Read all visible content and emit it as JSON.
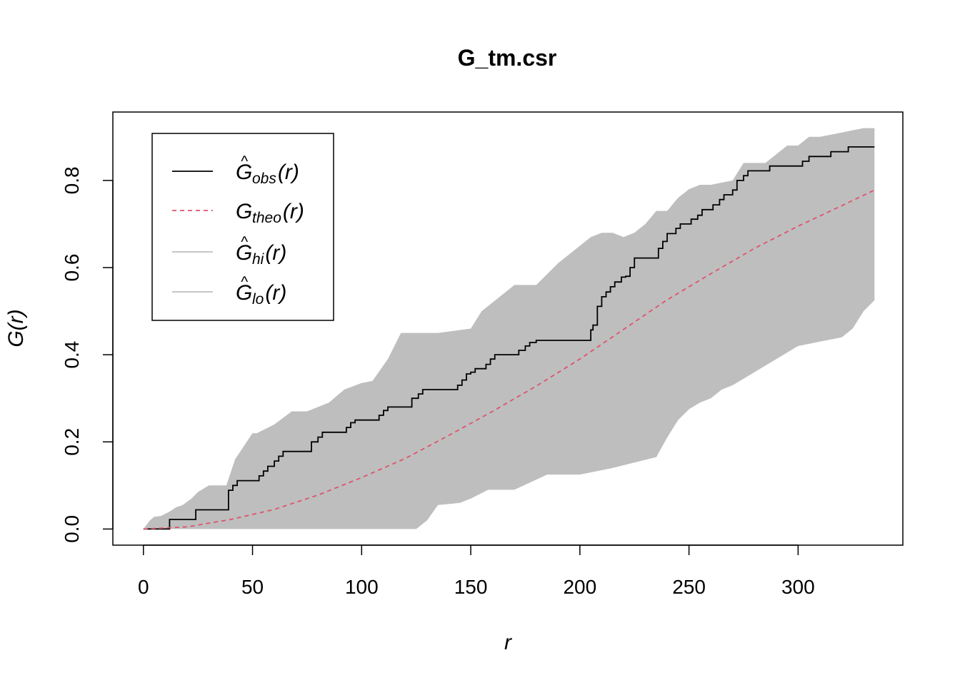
{
  "chart_data": {
    "type": "line",
    "title": "G_tm.csr",
    "xlabel": "r",
    "ylabel": "G(r)",
    "xlim": [
      -14,
      348
    ],
    "ylim": [
      -0.037,
      0.957
    ],
    "xticks": [
      0,
      50,
      100,
      150,
      200,
      250,
      300
    ],
    "xtick_labels": [
      "0",
      "50",
      "100",
      "150",
      "200",
      "250",
      "300"
    ],
    "yticks": [
      0.0,
      0.2,
      0.4,
      0.6,
      0.8
    ],
    "ytick_labels": [
      "0.0",
      "0.2",
      "0.4",
      "0.6",
      "0.8"
    ],
    "grid": false,
    "legend_position": "top-left",
    "legend": [
      {
        "base": "G",
        "hat": true,
        "sub": "obs",
        "suffix": "(r)",
        "color": "#000000",
        "dash": "solid"
      },
      {
        "base": "G",
        "hat": false,
        "sub": "theo",
        "suffix": "(r)",
        "color": "#DF536B",
        "dash": "dashed"
      },
      {
        "base": "G",
        "hat": true,
        "sub": "hi",
        "suffix": "(r)",
        "color": "#BEBEBE",
        "dash": "solid"
      },
      {
        "base": "G",
        "hat": true,
        "sub": "lo",
        "suffix": "(r)",
        "color": "#BEBEBE",
        "dash": "solid"
      }
    ],
    "series": [
      {
        "name": "obs",
        "type": "step",
        "color": "#000000",
        "x": [
          0,
          11,
          12,
          22,
          24,
          38,
          39,
          41,
          43,
          51,
          53,
          55,
          57,
          60,
          62,
          64,
          66,
          75,
          77,
          80,
          82,
          91,
          93,
          95,
          97,
          106,
          108,
          110,
          112,
          121,
          123,
          126,
          128,
          142,
          144,
          146,
          148,
          150,
          152,
          157,
          159,
          161,
          163,
          170,
          172,
          175,
          177,
          180,
          182,
          203,
          205,
          206,
          208,
          210,
          212,
          214,
          216,
          219,
          221,
          223,
          225,
          234,
          236,
          238,
          240,
          244,
          246,
          249,
          251,
          254,
          256,
          259,
          261,
          264,
          266,
          270,
          272,
          275,
          277,
          280,
          282,
          285,
          287,
          300,
          302,
          305,
          307,
          315,
          317,
          323,
          325,
          335
        ],
        "y": [
          0,
          0,
          0.022,
          0.022,
          0.044,
          0.044,
          0.089,
          0.1,
          0.111,
          0.111,
          0.122,
          0.133,
          0.144,
          0.156,
          0.167,
          0.178,
          0.178,
          0.178,
          0.2,
          0.211,
          0.222,
          0.222,
          0.233,
          0.244,
          0.25,
          0.25,
          0.261,
          0.272,
          0.28,
          0.28,
          0.3,
          0.31,
          0.32,
          0.32,
          0.33,
          0.342,
          0.356,
          0.36,
          0.368,
          0.378,
          0.39,
          0.4,
          0.4,
          0.4,
          0.41,
          0.42,
          0.428,
          0.433,
          0.433,
          0.433,
          0.457,
          0.468,
          0.511,
          0.533,
          0.544,
          0.556,
          0.567,
          0.578,
          0.58,
          0.6,
          0.622,
          0.622,
          0.644,
          0.66,
          0.678,
          0.69,
          0.7,
          0.7,
          0.711,
          0.72,
          0.733,
          0.733,
          0.744,
          0.756,
          0.767,
          0.778,
          0.8,
          0.811,
          0.822,
          0.822,
          0.822,
          0.822,
          0.833,
          0.833,
          0.844,
          0.855,
          0.855,
          0.866,
          0.866,
          0.877,
          0.877,
          0.877
        ]
      },
      {
        "name": "theo",
        "type": "line",
        "color": "#DF536B",
        "x": [
          0,
          20,
          40,
          60,
          80,
          100,
          120,
          140,
          160,
          180,
          200,
          220,
          240,
          260,
          280,
          300,
          320,
          335
        ],
        "y": [
          0,
          0.005,
          0.022,
          0.045,
          0.078,
          0.118,
          0.162,
          0.215,
          0.27,
          0.328,
          0.39,
          0.458,
          0.526,
          0.586,
          0.644,
          0.695,
          0.742,
          0.778
        ]
      }
    ],
    "envelope": {
      "name": "hi/lo",
      "color": "#BEBEBE",
      "hi": {
        "x": [
          0,
          3,
          5,
          8,
          12,
          15,
          18,
          22,
          25,
          30,
          38,
          42,
          50,
          52,
          60,
          68,
          75,
          85,
          92,
          100,
          105,
          112,
          118,
          125,
          135,
          150,
          155,
          160,
          170,
          180,
          190,
          195,
          200,
          205,
          210,
          215,
          220,
          225,
          230,
          235,
          240,
          245,
          250,
          255,
          260,
          270,
          275,
          280,
          285,
          290,
          295,
          300,
          305,
          310,
          315,
          320,
          325,
          330,
          335
        ],
        "y": [
          0,
          0.02,
          0.028,
          0.03,
          0.04,
          0.05,
          0.055,
          0.07,
          0.085,
          0.1,
          0.1,
          0.16,
          0.22,
          0.22,
          0.24,
          0.27,
          0.27,
          0.29,
          0.32,
          0.335,
          0.34,
          0.39,
          0.45,
          0.45,
          0.45,
          0.46,
          0.5,
          0.52,
          0.56,
          0.56,
          0.61,
          0.63,
          0.65,
          0.67,
          0.68,
          0.68,
          0.67,
          0.68,
          0.7,
          0.73,
          0.73,
          0.76,
          0.78,
          0.79,
          0.79,
          0.8,
          0.84,
          0.84,
          0.84,
          0.86,
          0.88,
          0.88,
          0.9,
          0.9,
          0.905,
          0.91,
          0.915,
          0.92,
          0.92
        ]
      },
      "lo": {
        "x": [
          0,
          30,
          60,
          90,
          125,
          130,
          135,
          145,
          150,
          158,
          170,
          185,
          200,
          215,
          235,
          240,
          245,
          250,
          255,
          260,
          265,
          270,
          275,
          280,
          290,
          300,
          310,
          320,
          325,
          330,
          335
        ],
        "y": [
          0,
          0,
          0,
          0,
          0,
          0.02,
          0.055,
          0.06,
          0.07,
          0.09,
          0.09,
          0.125,
          0.125,
          0.14,
          0.165,
          0.21,
          0.25,
          0.275,
          0.29,
          0.3,
          0.32,
          0.33,
          0.345,
          0.36,
          0.39,
          0.42,
          0.43,
          0.44,
          0.46,
          0.5,
          0.525
        ]
      }
    }
  }
}
